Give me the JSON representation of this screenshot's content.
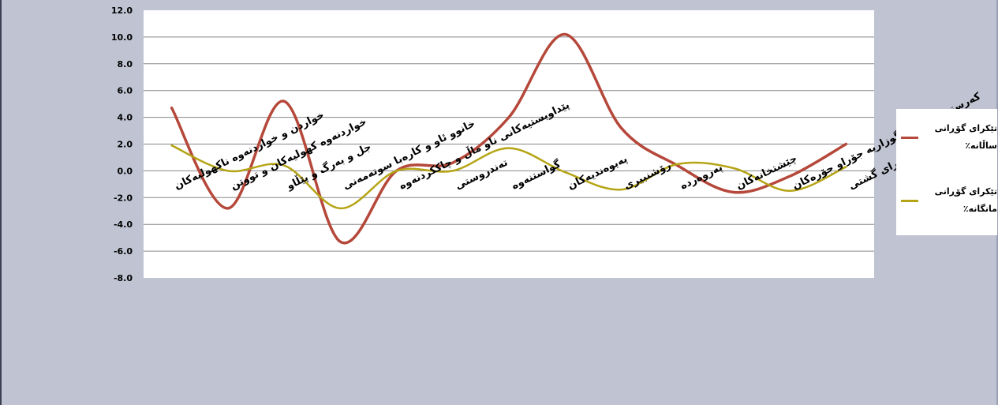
{
  "chart_data": {
    "type": "line",
    "categories": [
      "خواردن و خواردنەوە ناكهولیەكان",
      "خواردنەوە كهولیەكان و تووتن",
      "جل و بەرگ و پێڵاو",
      "خانوو ئاو و كارەبا سوتەمەنی",
      "پێداویستیەكانی ناو ماڵ و چاككردنەوە",
      "تەندروستی",
      "گواستنەوە",
      "پەیوەندیەكان",
      "رۆشنبیری",
      "پەروەردە",
      "چێشتخانەكان",
      "كەرستەو خزمەت گوزاریە جۆراو جۆرەكان",
      "تێكرای گشتی"
    ],
    "series": [
      {
        "name": "تێكرای گۆڕانی ساڵانە٪",
        "color": "#b5483a",
        "values": [
          4.7,
          -2.8,
          5.2,
          -5.3,
          0.0,
          0.6,
          4.0,
          10.2,
          3.2,
          0.4,
          -1.6,
          -0.4,
          2.0
        ]
      },
      {
        "name": "تێكرای گۆڕانی مانگانە٪",
        "color": "#b5a414",
        "values": [
          1.9,
          0.0,
          0.4,
          -2.8,
          0.0,
          0.0,
          1.7,
          -0.1,
          -1.4,
          0.5,
          0.2,
          -1.5,
          0.3
        ]
      }
    ],
    "y_ticks": [
      "-8.0",
      "-6.0",
      "-4.0",
      "-2.0",
      "0.0",
      "2.0",
      "4.0",
      "6.0",
      "8.0",
      "10.0",
      "12.0"
    ],
    "ylim": [
      -8,
      12
    ],
    "grid": true,
    "legend_position": "right"
  }
}
